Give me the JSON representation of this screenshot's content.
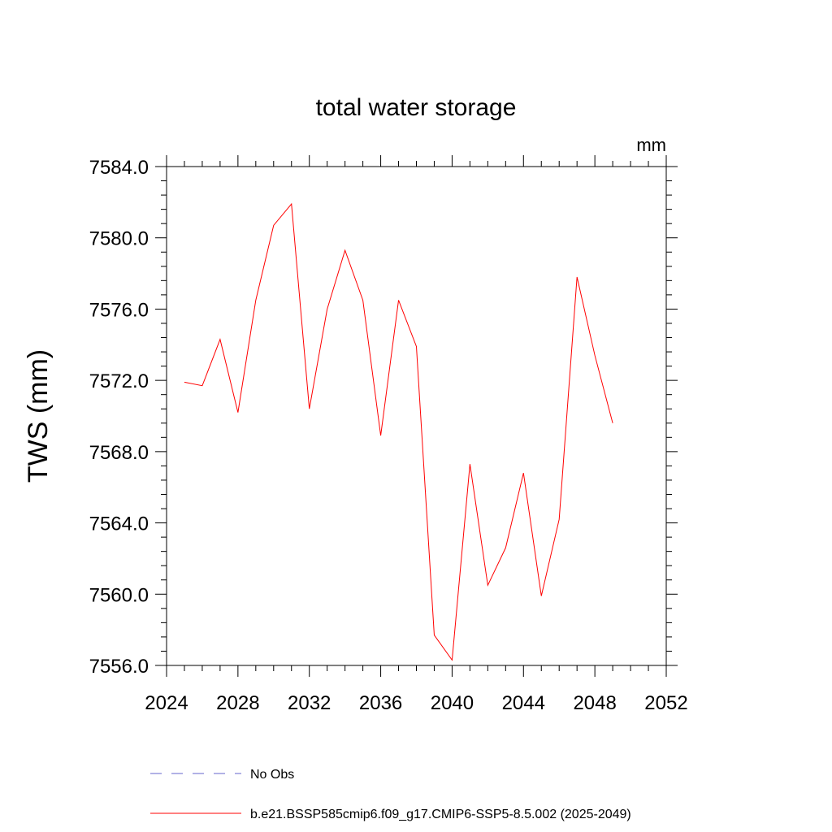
{
  "chart_data": {
    "type": "line",
    "title": "total water storage",
    "units_label": "mm",
    "xlabel": "",
    "ylabel": "TWS  (mm)",
    "xlim": [
      2024,
      2052
    ],
    "ylim": [
      7556.0,
      7584.0
    ],
    "x_ticks": [
      2024,
      2028,
      2032,
      2036,
      2040,
      2044,
      2048,
      2052
    ],
    "y_ticks": [
      "7556.0",
      "7560.0",
      "7564.0",
      "7568.0",
      "7572.0",
      "7576.0",
      "7580.0",
      "7584.0"
    ],
    "grid": false,
    "legend_position": "bottom",
    "series": [
      {
        "name": "b.e21.BSSP585cmip6.f09_g17.CMIP6-SSP5-8.5.002 (2025-2049)",
        "color": "#ff0000",
        "style": "solid",
        "x": [
          2025,
          2026,
          2027,
          2028,
          2029,
          2030,
          2031,
          2032,
          2033,
          2034,
          2035,
          2036,
          2037,
          2038,
          2039,
          2040,
          2041,
          2042,
          2043,
          2044,
          2045,
          2046,
          2047,
          2048,
          2049
        ],
        "values": [
          7571.9,
          7571.7,
          7574.3,
          7570.2,
          7576.5,
          7580.7,
          7581.9,
          7570.4,
          7576.0,
          7579.3,
          7576.5,
          7568.9,
          7576.5,
          7573.9,
          7557.7,
          7556.3,
          7567.3,
          7560.5,
          7562.6,
          7566.8,
          7559.9,
          7564.2,
          7577.8,
          7573.4,
          7569.6
        ]
      }
    ],
    "legend": [
      {
        "label": "No Obs",
        "color": "#6666cc",
        "style": "dashed"
      },
      {
        "label": "b.e21.BSSP585cmip6.f09_g17.CMIP6-SSP5-8.5.002 (2025-2049)",
        "color": "#ff0000",
        "style": "solid"
      }
    ]
  }
}
